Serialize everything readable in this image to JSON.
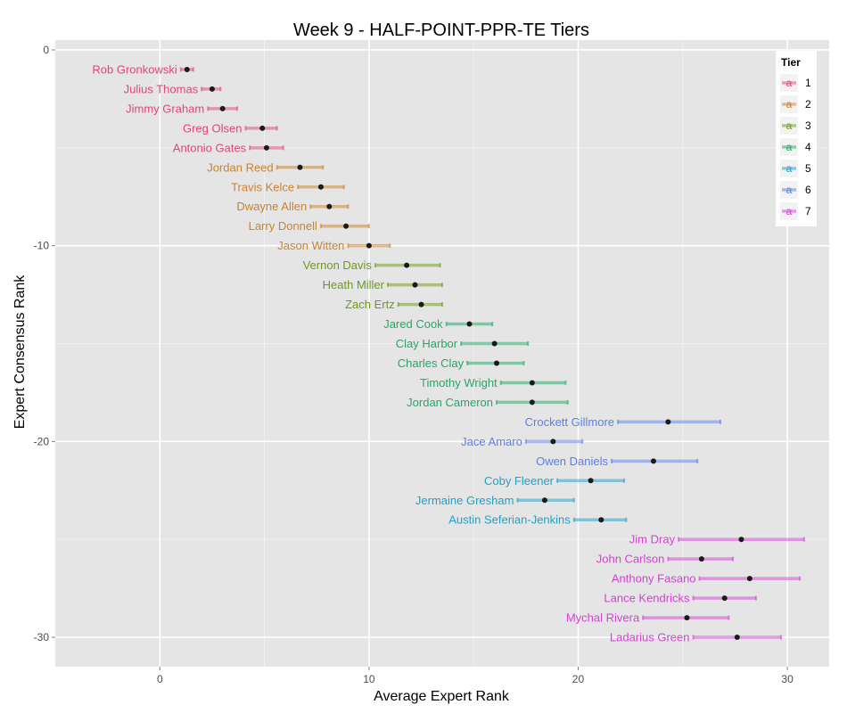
{
  "chart_data": {
    "type": "scatter",
    "title": "Week 9 - HALF-POINT-PPR-TE Tiers",
    "xlabel": "Average Expert Rank",
    "ylabel": "Expert Consensus Rank",
    "xlim": [
      -5,
      32
    ],
    "ylim": [
      -31.5,
      0.5
    ],
    "x_ticks": [
      0,
      10,
      20,
      30
    ],
    "y_ticks": [
      0,
      -10,
      -20,
      -30
    ],
    "grid": true,
    "legend": {
      "title": "Tier",
      "position": "top-right",
      "key_glyph": "a",
      "entries": [
        {
          "label": "1",
          "color": "#e0457b"
        },
        {
          "label": "2",
          "color": "#c8842f"
        },
        {
          "label": "3",
          "color": "#6e9a1c"
        },
        {
          "label": "4",
          "color": "#22a86a"
        },
        {
          "label": "5",
          "color": "#22a0c8"
        },
        {
          "label": "6",
          "color": "#5b7fe8"
        },
        {
          "label": "7",
          "color": "#d63fd6"
        }
      ]
    },
    "points": [
      {
        "name": "Rob Gronkowski",
        "tier": 1,
        "rank": -1,
        "avg": 1.3,
        "lo": 1.0,
        "hi": 1.6
      },
      {
        "name": "Julius Thomas",
        "tier": 1,
        "rank": -2,
        "avg": 2.5,
        "lo": 2.0,
        "hi": 2.9
      },
      {
        "name": "Jimmy Graham",
        "tier": 1,
        "rank": -3,
        "avg": 3.0,
        "lo": 2.3,
        "hi": 3.7
      },
      {
        "name": "Greg Olsen",
        "tier": 1,
        "rank": -4,
        "avg": 4.9,
        "lo": 4.1,
        "hi": 5.6
      },
      {
        "name": "Antonio Gates",
        "tier": 1,
        "rank": -5,
        "avg": 5.1,
        "lo": 4.3,
        "hi": 5.9
      },
      {
        "name": "Jordan Reed",
        "tier": 2,
        "rank": -6,
        "avg": 6.7,
        "lo": 5.6,
        "hi": 7.8
      },
      {
        "name": "Travis Kelce",
        "tier": 2,
        "rank": -7,
        "avg": 7.7,
        "lo": 6.6,
        "hi": 8.8
      },
      {
        "name": "Dwayne Allen",
        "tier": 2,
        "rank": -8,
        "avg": 8.1,
        "lo": 7.2,
        "hi": 9.0
      },
      {
        "name": "Larry Donnell",
        "tier": 2,
        "rank": -9,
        "avg": 8.9,
        "lo": 7.7,
        "hi": 10.0
      },
      {
        "name": "Jason Witten",
        "tier": 2,
        "rank": -10,
        "avg": 10.0,
        "lo": 9.0,
        "hi": 11.0
      },
      {
        "name": "Vernon Davis",
        "tier": 3,
        "rank": -11,
        "avg": 11.8,
        "lo": 10.3,
        "hi": 13.4
      },
      {
        "name": "Heath Miller",
        "tier": 3,
        "rank": -12,
        "avg": 12.2,
        "lo": 10.9,
        "hi": 13.5
      },
      {
        "name": "Zach Ertz",
        "tier": 3,
        "rank": -13,
        "avg": 12.5,
        "lo": 11.4,
        "hi": 13.5
      },
      {
        "name": "Jared Cook",
        "tier": 4,
        "rank": -14,
        "avg": 14.8,
        "lo": 13.7,
        "hi": 15.9
      },
      {
        "name": "Clay Harbor",
        "tier": 4,
        "rank": -15,
        "avg": 16.0,
        "lo": 14.4,
        "hi": 17.6
      },
      {
        "name": "Charles Clay",
        "tier": 4,
        "rank": -16,
        "avg": 16.1,
        "lo": 14.7,
        "hi": 17.4
      },
      {
        "name": "Timothy Wright",
        "tier": 4,
        "rank": -17,
        "avg": 17.8,
        "lo": 16.3,
        "hi": 19.4
      },
      {
        "name": "Jordan Cameron",
        "tier": 4,
        "rank": -18,
        "avg": 17.8,
        "lo": 16.1,
        "hi": 19.5
      },
      {
        "name": "Crockett Gillmore",
        "tier": 6,
        "rank": -19,
        "avg": 24.3,
        "lo": 21.9,
        "hi": 26.8
      },
      {
        "name": "Jace Amaro",
        "tier": 6,
        "rank": -20,
        "avg": 18.8,
        "lo": 17.5,
        "hi": 20.2
      },
      {
        "name": "Owen Daniels",
        "tier": 6,
        "rank": -21,
        "avg": 23.6,
        "lo": 21.6,
        "hi": 25.7
      },
      {
        "name": "Coby Fleener",
        "tier": 5,
        "rank": -22,
        "avg": 20.6,
        "lo": 19.0,
        "hi": 22.2
      },
      {
        "name": "Jermaine Gresham",
        "tier": 5,
        "rank": -23,
        "avg": 18.4,
        "lo": 17.1,
        "hi": 19.8
      },
      {
        "name": "Austin Seferian-Jenkins",
        "tier": 5,
        "rank": -24,
        "avg": 21.1,
        "lo": 19.8,
        "hi": 22.3
      },
      {
        "name": "Jim Dray",
        "tier": 7,
        "rank": -25,
        "avg": 27.8,
        "lo": 24.8,
        "hi": 30.8
      },
      {
        "name": "John Carlson",
        "tier": 7,
        "rank": -26,
        "avg": 25.9,
        "lo": 24.3,
        "hi": 27.4
      },
      {
        "name": "Anthony Fasano",
        "tier": 7,
        "rank": -27,
        "avg": 28.2,
        "lo": 25.8,
        "hi": 30.6
      },
      {
        "name": "Lance Kendricks",
        "tier": 7,
        "rank": -28,
        "avg": 27.0,
        "lo": 25.5,
        "hi": 28.5
      },
      {
        "name": "Mychal Rivera",
        "tier": 7,
        "rank": -29,
        "avg": 25.2,
        "lo": 23.1,
        "hi": 27.2
      },
      {
        "name": "Ladarius Green",
        "tier": 7,
        "rank": -30,
        "avg": 27.6,
        "lo": 25.5,
        "hi": 29.7
      }
    ]
  }
}
